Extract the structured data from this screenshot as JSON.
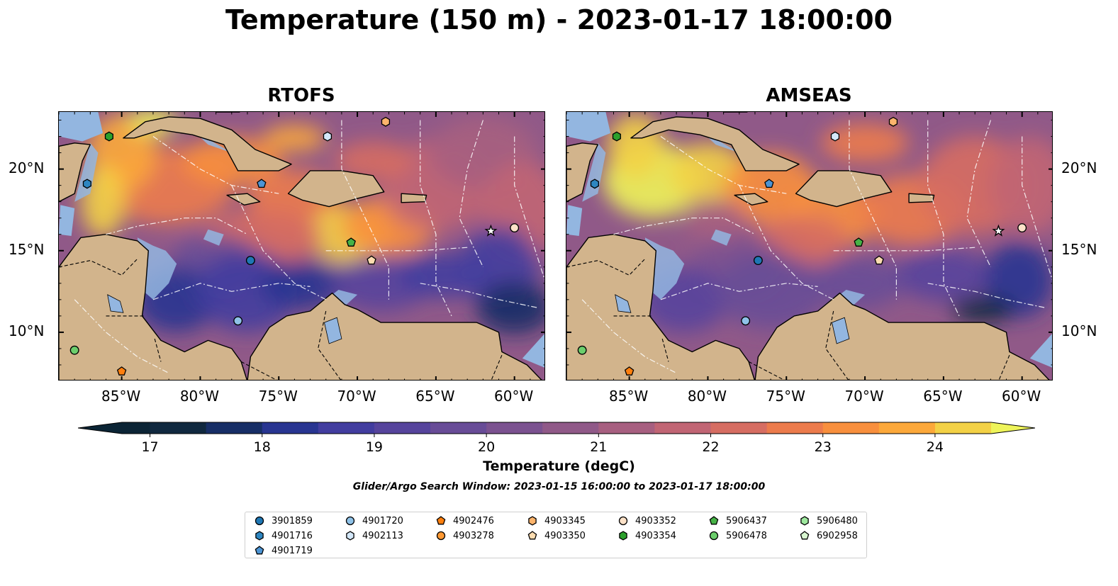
{
  "figure": {
    "title": "Temperature (150 m) - 2023-01-17 18:00:00",
    "search_window": "Glider/Argo Search Window: 2023-01-15 16:00:00 to 2023-01-17 18:00:00"
  },
  "maps": {
    "extent": {
      "lon_min": -89,
      "lon_max": -58,
      "lat_min": 7,
      "lat_max": 23.5
    },
    "x_ticks": [
      "85°W",
      "80°W",
      "75°W",
      "70°W",
      "65°W",
      "60°W"
    ],
    "x_tick_values": [
      -85,
      -80,
      -75,
      -70,
      -65,
      -60
    ],
    "y_ticks": [
      "20°N",
      "15°N",
      "10°N"
    ],
    "y_tick_values": [
      20,
      15,
      10
    ],
    "panels": [
      {
        "title": "RTOFS"
      },
      {
        "title": "AMSEAS"
      }
    ],
    "colors": {
      "land": "#d2b48c",
      "shallow_water": "#93b6e0",
      "coastline": "#000000"
    }
  },
  "colorbar": {
    "label": "Temperature (degC)",
    "ticks": [
      "17",
      "18",
      "19",
      "20",
      "21",
      "22",
      "23",
      "24"
    ],
    "tick_values": [
      17,
      18,
      19,
      20,
      21,
      22,
      23,
      24
    ],
    "range": [
      16.75,
      24.5
    ],
    "extend": "both",
    "under_color": "#0b2435",
    "over_color": "#eef45a",
    "bins": [
      {
        "from": 16.75,
        "to": 17.0,
        "color": "#0b2435"
      },
      {
        "from": 17.0,
        "to": 17.5,
        "color": "#10283f"
      },
      {
        "from": 17.5,
        "to": 18.0,
        "color": "#172e66"
      },
      {
        "from": 18.0,
        "to": 18.5,
        "color": "#283591"
      },
      {
        "from": 18.5,
        "to": 19.0,
        "color": "#423d9f"
      },
      {
        "from": 19.0,
        "to": 19.5,
        "color": "#56449c"
      },
      {
        "from": 19.5,
        "to": 20.0,
        "color": "#684c97"
      },
      {
        "from": 20.0,
        "to": 20.5,
        "color": "#7b5290"
      },
      {
        "from": 20.5,
        "to": 21.0,
        "color": "#905988"
      },
      {
        "from": 21.0,
        "to": 21.5,
        "color": "#a75f80"
      },
      {
        "from": 21.5,
        "to": 22.0,
        "color": "#c16574"
      },
      {
        "from": 22.0,
        "to": 22.5,
        "color": "#d66d62"
      },
      {
        "from": 22.5,
        "to": 23.0,
        "color": "#ec7b4c"
      },
      {
        "from": 23.0,
        "to": 23.5,
        "color": "#f88f3d"
      },
      {
        "from": 23.5,
        "to": 24.0,
        "color": "#fca83a"
      },
      {
        "from": 24.0,
        "to": 24.5,
        "color": "#f3d146"
      }
    ]
  },
  "floats": [
    {
      "id": "3901859",
      "marker": "circle",
      "color": "#1f77b4",
      "lon": -76.8,
      "lat": 14.4
    },
    {
      "id": "4901716",
      "marker": "hexagon",
      "color": "#2e86c1",
      "lon": -87.2,
      "lat": 19.1
    },
    {
      "id": "4901719",
      "marker": "pentagon",
      "color": "#4c94d4",
      "lon": -76.1,
      "lat": 19.1
    },
    {
      "id": "4901720",
      "marker": "circle",
      "color": "#8fc2e8",
      "lon": -77.6,
      "lat": 10.7
    },
    {
      "id": "4902113",
      "marker": "hexagon",
      "color": "#d4e8fa",
      "lon": -71.9,
      "lat": 22.0
    },
    {
      "id": "4902476",
      "marker": "pentagon",
      "color": "#ff7f0e",
      "lon": -85.0,
      "lat": 7.6
    },
    {
      "id": "4903278",
      "marker": "circle",
      "color": "#ff9933",
      "lon": null,
      "lat": null
    },
    {
      "id": "4903345",
      "marker": "hexagon",
      "color": "#fdb46c",
      "lon": -68.2,
      "lat": 22.9
    },
    {
      "id": "4903350",
      "marker": "pentagon",
      "color": "#fddcb0",
      "lon": -69.1,
      "lat": 14.4
    },
    {
      "id": "4903352",
      "marker": "circle",
      "color": "#fde2c8",
      "lon": -60.0,
      "lat": 16.4
    },
    {
      "id": "4903354",
      "marker": "hexagon",
      "color": "#2ca02c",
      "lon": -85.8,
      "lat": 22.0
    },
    {
      "id": "5906437",
      "marker": "pentagon",
      "color": "#46b246",
      "lon": -70.4,
      "lat": 15.5
    },
    {
      "id": "5906478",
      "marker": "circle",
      "color": "#6cce6c",
      "lon": -88.0,
      "lat": 8.9
    },
    {
      "id": "5906480",
      "marker": "hexagon",
      "color": "#9ee89e",
      "lon": null,
      "lat": null
    },
    {
      "id": "6902958",
      "marker": "pentagon",
      "color": "#d8f6d0",
      "lon": null,
      "lat": null
    }
  ],
  "gliders": [
    {
      "marker": "star",
      "color": "#ffffff",
      "lon": -61.5,
      "lat": 16.2
    }
  ]
}
